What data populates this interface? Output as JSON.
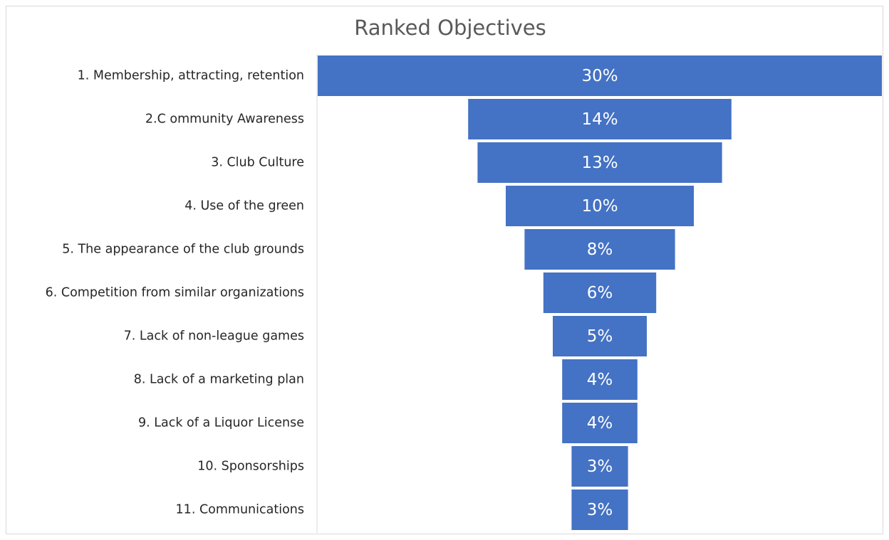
{
  "chart_data": {
    "type": "bar",
    "subtype": "funnel",
    "title": "Ranked Objectives",
    "categories": [
      "1. Membership, attracting, retention",
      "2.C ommunity Awareness",
      "3. Club Culture",
      "4. Use of the green",
      "5. The appearance of the club grounds",
      "6. Competition from similar organizations",
      "7. Lack of non-league games",
      "8. Lack of a marketing plan",
      "9. Lack of a Liquor License",
      "10. Sponsorships",
      "11. Communications"
    ],
    "values": [
      30,
      14,
      13,
      10,
      8,
      6,
      5,
      4,
      4,
      3,
      3
    ],
    "data_labels": [
      "30%",
      "14%",
      "13%",
      "10%",
      "8%",
      "6%",
      "5%",
      "4%",
      "4%",
      "3%",
      "3%"
    ],
    "unit": "%",
    "bar_color": "#4472c4",
    "label_color": "#ffffff",
    "grid": false,
    "legend": "none"
  }
}
